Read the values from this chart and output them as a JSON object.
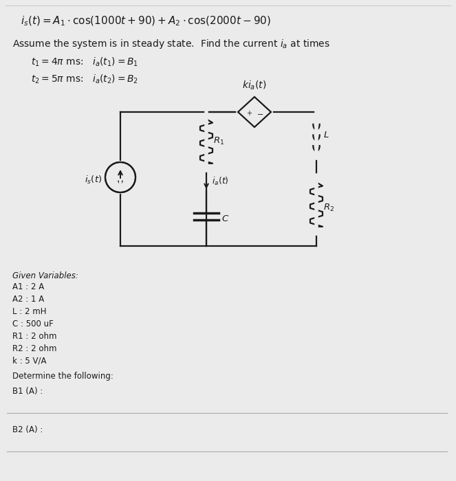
{
  "bg_color": "#ebebeb",
  "text_color": "#1a1a1a",
  "circuit_line_color": "#1a1a1a",
  "fig_width": 6.63,
  "fig_height": 7.0,
  "dpi": 100,
  "given_header": "Given Variables:",
  "given_vars": [
    "A1 : 2 A",
    "A2 : 1 A",
    "L : 2 mH",
    "C : 500 uF",
    "R1 : 2 ohm",
    "R2 : 2 ohm",
    "k : 5 V/A"
  ],
  "determine": "Determine the following:",
  "b1_label": "B1 (A) :",
  "b2_label": "B2 (A) :"
}
